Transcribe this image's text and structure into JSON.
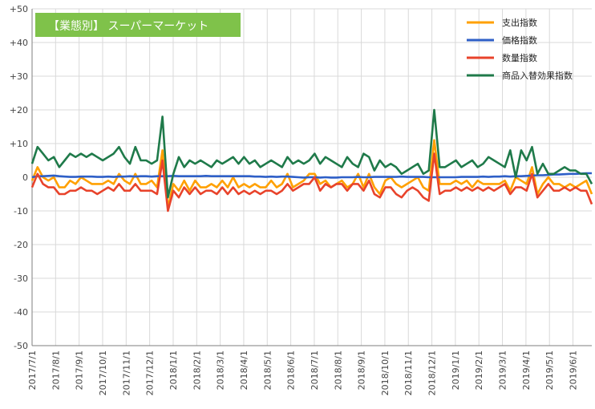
{
  "chart_data": {
    "type": "line",
    "title": "【業態別】 スーパーマーケット",
    "xlabel": "",
    "ylabel": "",
    "ylim": [
      -50,
      50
    ],
    "y_ticks": [
      "+50",
      "+40",
      "+30",
      "+20",
      "+10",
      "0",
      "-10",
      "-20",
      "-30",
      "-40",
      "-50"
    ],
    "x_tick_labels": [
      "2017/7/1",
      "2017/8/1",
      "2017/9/1",
      "2017/10/1",
      "2017/11/1",
      "2017/12/1",
      "2018/1/1",
      "2018/2/1",
      "2018/3/1",
      "2018/4/1",
      "2018/5/1",
      "2018/6/1",
      "2018/7/1",
      "2018/8/1",
      "2018/9/1",
      "2018/10/1",
      "2018/11/1",
      "2018/12/1",
      "2019/1/1",
      "2019/2/1",
      "2019/3/1",
      "2019/4/1",
      "2019/5/1",
      "2019/6/1"
    ],
    "weeks_count": 104,
    "legend_position": "top-right",
    "grid": true,
    "colors": {
      "title_bg": "#7fc24a",
      "grid": "#d9d9d9",
      "axis": "#7f7f7f"
    },
    "series": [
      {
        "name": "支出指数",
        "color": "#ffa000",
        "values": [
          -1,
          3,
          0,
          -1,
          0,
          -3,
          -3,
          -1,
          -2,
          0,
          -1,
          -2,
          -2,
          -2,
          -1,
          -2,
          1,
          -1,
          -2,
          1,
          -2,
          -2,
          -1,
          -3,
          8,
          -9,
          -2,
          -4,
          -1,
          -4,
          -1,
          -3,
          -3,
          -2,
          -3,
          -1,
          -3,
          0,
          -3,
          -2,
          -3,
          -2,
          -3,
          -3,
          -1,
          -3,
          -2,
          1,
          -3,
          -2,
          -1,
          1,
          1,
          -2,
          -1,
          -3,
          -2,
          -1,
          -3,
          -2,
          1,
          -3,
          1,
          -3,
          -5,
          -1,
          0,
          -2,
          -3,
          -2,
          -1,
          0,
          -3,
          -4,
          11,
          -2,
          -2,
          -2,
          -1,
          -2,
          -1,
          -3,
          -1,
          -2,
          -2,
          -2,
          -2,
          -1,
          -4,
          0,
          -1,
          -2,
          3,
          -5,
          -2,
          0,
          -2,
          -2,
          -3,
          -2,
          -3,
          -2,
          -1,
          -5
        ]
      },
      {
        "name": "価格指数",
        "color": "#2e5fc7",
        "values": [
          0,
          0.3,
          0.3,
          0.4,
          0.5,
          0.3,
          0.2,
          0.1,
          0.1,
          0.2,
          0.2,
          0.2,
          0.1,
          0.1,
          0.2,
          0.1,
          0.2,
          0.2,
          0.3,
          0.2,
          0.3,
          0.3,
          0.2,
          0.3,
          0.3,
          0.3,
          0.4,
          0.3,
          0.3,
          0.3,
          0.3,
          0.3,
          0.4,
          0.3,
          0.3,
          0.3,
          0.3,
          0.3,
          0.3,
          0.3,
          0.3,
          0.2,
          0.2,
          0.1,
          0.2,
          0.1,
          0.2,
          0.2,
          0.1,
          0,
          -0.1,
          0,
          0,
          -0.1,
          0,
          -0.1,
          -0.1,
          0,
          0,
          0,
          0.1,
          0,
          0,
          0.1,
          0.1,
          0.1,
          0.1,
          0.1,
          0.2,
          0.1,
          0.1,
          0.1,
          0.1,
          0,
          0,
          0,
          0,
          0,
          0,
          0.1,
          0.1,
          0.1,
          0.1,
          0.2,
          0.1,
          0.2,
          0.2,
          0.3,
          0.2,
          0.3,
          0.3,
          0.4,
          0.5,
          0.6,
          0.6,
          0.7,
          0.8,
          0.8,
          0.9,
          1.0,
          1.0,
          1.1,
          1.2,
          1.2
        ]
      },
      {
        "name": "数量指数",
        "color": "#e8432b",
        "values": [
          -3,
          1,
          -2,
          -3,
          -3,
          -5,
          -5,
          -4,
          -4,
          -3,
          -4,
          -4,
          -5,
          -4,
          -3,
          -4,
          -2,
          -4,
          -4,
          -2,
          -4,
          -4,
          -4,
          -5,
          5,
          -10,
          -4,
          -6,
          -3,
          -5,
          -3,
          -5,
          -4,
          -4,
          -5,
          -3,
          -5,
          -3,
          -5,
          -4,
          -5,
          -4,
          -5,
          -4,
          -4,
          -5,
          -4,
          -2,
          -4,
          -3,
          -2,
          -2,
          0,
          -4,
          -2,
          -3,
          -2,
          -2,
          -4,
          -2,
          -2,
          -4,
          -1,
          -5,
          -6,
          -3,
          -3,
          -5,
          -6,
          -4,
          -3,
          -4,
          -6,
          -7,
          7,
          -5,
          -4,
          -4,
          -3,
          -4,
          -3,
          -4,
          -3,
          -4,
          -3,
          -4,
          -3,
          -2,
          -5,
          -3,
          -3,
          -4,
          1,
          -6,
          -4,
          -2,
          -4,
          -4,
          -3,
          -4,
          -3,
          -4,
          -4,
          -8
        ]
      },
      {
        "name": "商品入替効果指数",
        "color": "#1f7a4a",
        "values": [
          4,
          9,
          7,
          5,
          6,
          3,
          5,
          7,
          6,
          7,
          6,
          7,
          6,
          5,
          6,
          7,
          9,
          6,
          4,
          9,
          5,
          5,
          4,
          5,
          18,
          -6,
          1,
          6,
          3,
          5,
          4,
          5,
          4,
          3,
          5,
          4,
          5,
          6,
          4,
          6,
          4,
          5,
          3,
          4,
          5,
          4,
          3,
          6,
          4,
          5,
          4,
          5,
          7,
          4,
          6,
          5,
          4,
          3,
          6,
          4,
          3,
          7,
          6,
          2,
          5,
          3,
          4,
          3,
          1,
          2,
          3,
          4,
          1,
          2,
          20,
          3,
          3,
          4,
          5,
          3,
          4,
          5,
          3,
          4,
          6,
          5,
          4,
          3,
          8,
          0,
          8,
          5,
          9,
          1,
          4,
          1,
          1,
          2,
          3,
          2,
          2,
          1,
          1,
          -2
        ]
      }
    ]
  }
}
